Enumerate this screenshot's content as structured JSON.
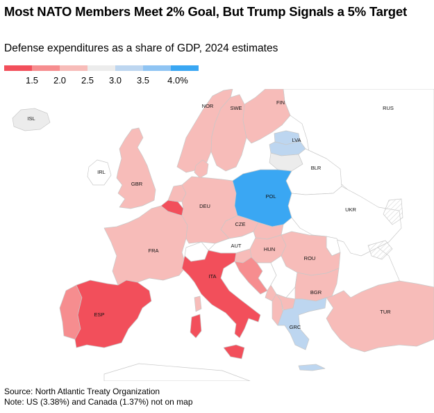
{
  "header": {
    "title": "Most NATO Members Meet 2% Goal, But Trump Signals a 5% Target",
    "subtitle": "Defense expenditures as a share of GDP, 2024 estimates"
  },
  "legend": {
    "ticks": [
      "1.5",
      "2.0",
      "2.5",
      "3.0",
      "3.5",
      "4.0%"
    ],
    "colors": [
      "#f24f5b",
      "#f68d8f",
      "#f7bcb9",
      "#ececec",
      "#bdd6f0",
      "#8fc4f3",
      "#3aa7f3"
    ]
  },
  "colors": {
    "non_member": "#ffffff",
    "border": "#c8c8c8",
    "hatch": "#d6d6d6"
  },
  "countries": [
    {
      "code": "ISL",
      "name": "ISL"
    },
    {
      "code": "NOR",
      "name": "NOR"
    },
    {
      "code": "SWE",
      "name": "SWE"
    },
    {
      "code": "FIN",
      "name": "FIN"
    },
    {
      "code": "RUS",
      "name": "RUS"
    },
    {
      "code": "LVA",
      "name": "LVA"
    },
    {
      "code": "BLR",
      "name": "BLR"
    },
    {
      "code": "IRL",
      "name": "IRL"
    },
    {
      "code": "GBR",
      "name": "GBR"
    },
    {
      "code": "DEU",
      "name": "DEU"
    },
    {
      "code": "POL",
      "name": "POL"
    },
    {
      "code": "UKR",
      "name": "UKR"
    },
    {
      "code": "CZE",
      "name": "CZE"
    },
    {
      "code": "FRA",
      "name": "FRA"
    },
    {
      "code": "AUT",
      "name": "AUT"
    },
    {
      "code": "HUN",
      "name": "HUN"
    },
    {
      "code": "ROU",
      "name": "ROU"
    },
    {
      "code": "ITA",
      "name": "ITA"
    },
    {
      "code": "BGR",
      "name": "BGR"
    },
    {
      "code": "ESP",
      "name": "ESP"
    },
    {
      "code": "TUR",
      "name": "TUR"
    },
    {
      "code": "GRC",
      "name": "GRC"
    }
  ],
  "footer": {
    "source": "Source: North Atlantic Treaty Organization",
    "note": "Note: US (3.38%) and Canada (1.37%) not on map"
  }
}
